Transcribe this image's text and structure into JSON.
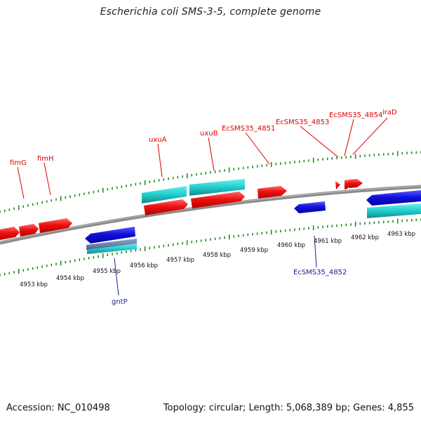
{
  "title": "Escherichia coli SMS-3-5, complete genome",
  "footer": {
    "accession": "Accession: NC_010498",
    "summary": "Topology: circular; Length: 5,068,389 bp; Genes: 4,855"
  },
  "colors": {
    "forward_gene": "#ee1111",
    "reverse_gene": "#1111dd",
    "cds_feature": "#22cccc",
    "backbone": "#777777",
    "ticks": "#228b22",
    "label_red": "#dd0000",
    "label_blue": "#1a1a99"
  },
  "scale": {
    "unit": "kbp",
    "labels": [
      "4953 kbp",
      "4954 kbp",
      "4955 kbp",
      "4956 kbp",
      "4957 kbp",
      "4958 kbp",
      "4959 kbp",
      "4960 kbp",
      "4961 kbp",
      "4962 kbp",
      "4963 kbp"
    ]
  },
  "gene_labels": {
    "fimG": "fimG",
    "fimH": "fimH",
    "uxuA": "uxuA",
    "uxuB": "uxuB",
    "EcSMS35_4851": "EcSMS35_4851",
    "EcSMS35_4853": "EcSMS35_4853",
    "EcSMS35_4854": "EcSMS35_4854",
    "iraD": "iraD",
    "gntP": "gntP",
    "EcSMS35_4852": "EcSMS35_4852"
  }
}
